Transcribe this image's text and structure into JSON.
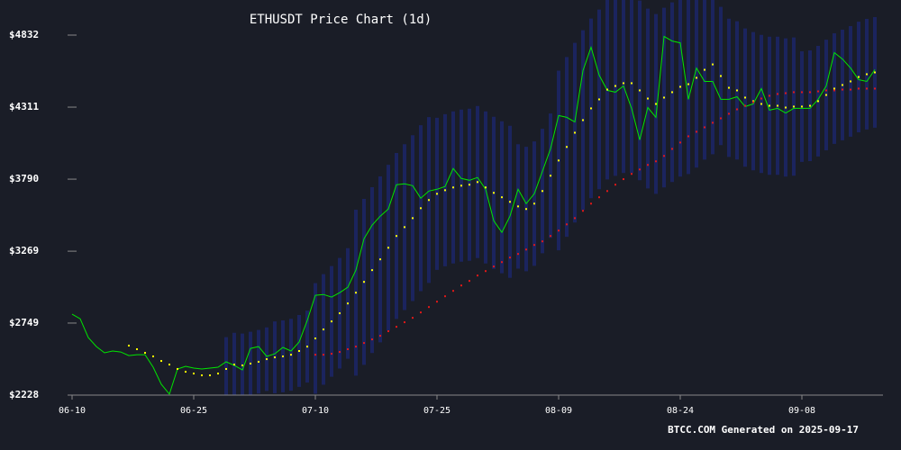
{
  "chart_data": {
    "type": "line",
    "title": "ETHUSDT Price Chart (1d)",
    "footer": "BTCC.COM Generated on 2025-09-17",
    "categories": [
      "06-10",
      "06-11",
      "06-12",
      "06-13",
      "06-14",
      "06-15",
      "06-16",
      "06-17",
      "06-18",
      "06-19",
      "06-20",
      "06-21",
      "06-22",
      "06-23",
      "06-24",
      "06-25",
      "06-26",
      "06-27",
      "06-28",
      "06-29",
      "06-30",
      "07-01",
      "07-02",
      "07-03",
      "07-04",
      "07-05",
      "07-06",
      "07-07",
      "07-08",
      "07-09",
      "07-10",
      "07-11",
      "07-12",
      "07-13",
      "07-14",
      "07-15",
      "07-16",
      "07-17",
      "07-18",
      "07-19",
      "07-20",
      "07-21",
      "07-22",
      "07-23",
      "07-24",
      "07-25",
      "07-26",
      "07-27",
      "07-28",
      "07-29",
      "07-30",
      "07-31",
      "08-01",
      "08-02",
      "08-03",
      "08-04",
      "08-05",
      "08-06",
      "08-07",
      "08-08",
      "08-09",
      "08-10",
      "08-11",
      "08-12",
      "08-13",
      "08-14",
      "08-15",
      "08-16",
      "08-17",
      "08-18",
      "08-19",
      "08-20",
      "08-21",
      "08-22",
      "08-23",
      "08-24",
      "08-25",
      "08-26",
      "08-27",
      "08-28",
      "08-29",
      "08-30",
      "08-31",
      "09-01",
      "09-02",
      "09-03",
      "09-04",
      "09-05",
      "09-06",
      "09-07",
      "09-08",
      "09-09",
      "09-10",
      "09-11",
      "09-12",
      "09-13",
      "09-14",
      "09-15",
      "09-16",
      "09-17"
    ],
    "xticks": [
      "06-10",
      "06-25",
      "07-10",
      "07-25",
      "08-09",
      "08-24",
      "09-08"
    ],
    "ylim": [
      2228,
      4832
    ],
    "yticks": [
      {
        "value": 2228,
        "label": "$2228"
      },
      {
        "value": 2749,
        "label": "$2749"
      },
      {
        "value": 3269,
        "label": "$3269"
      },
      {
        "value": 3790,
        "label": "$3790"
      },
      {
        "value": 4311,
        "label": "$4311"
      },
      {
        "value": 4832,
        "label": "$4832"
      }
    ],
    "band": {
      "color": "#1c2a8c",
      "upper": [
        null,
        null,
        null,
        null,
        null,
        null,
        null,
        null,
        null,
        null,
        null,
        null,
        null,
        null,
        null,
        null,
        null,
        null,
        null,
        2647,
        2679,
        2673,
        2686,
        2699,
        2718,
        2761,
        2768,
        2780,
        2807,
        2839,
        3038,
        3103,
        3161,
        3220,
        3291,
        3569,
        3647,
        3732,
        3810,
        3894,
        3979,
        4043,
        4108,
        4180,
        4239,
        4234,
        4260,
        4280,
        4293,
        4300,
        4319,
        4280,
        4241,
        4209,
        4176,
        4043,
        4024,
        4063,
        4154,
        4265,
        4575,
        4673,
        4776,
        4867,
        4952,
        5017,
        5088,
        5114,
        5134,
        5134,
        5082,
        5023,
        4984,
        5030,
        5069,
        5108,
        5127,
        5173,
        5231,
        5270,
        5036,
        4951,
        4932,
        4880,
        4854,
        4834,
        4821,
        4821,
        4808,
        4815,
        4715,
        4721,
        4754,
        4799,
        4845,
        4871,
        4897,
        4929,
        4949,
        4962
      ],
      "lower": [
        null,
        null,
        null,
        null,
        null,
        null,
        null,
        null,
        null,
        null,
        null,
        null,
        null,
        null,
        null,
        null,
        null,
        null,
        null,
        2187,
        2219,
        2213,
        2226,
        2239,
        2258,
        2241,
        2248,
        2260,
        2287,
        2319,
        2238,
        2303,
        2361,
        2420,
        2491,
        2369,
        2447,
        2532,
        2610,
        2694,
        2779,
        2843,
        2908,
        2980,
        3039,
        3134,
        3160,
        3180,
        3193,
        3200,
        3219,
        3180,
        3141,
        3109,
        3076,
        3143,
        3124,
        3163,
        3254,
        3365,
        3275,
        3373,
        3476,
        3567,
        3652,
        3717,
        3788,
        3814,
        3834,
        3834,
        3782,
        3723,
        3684,
        3730,
        3769,
        3808,
        3827,
        3873,
        3931,
        3970,
        4036,
        3951,
        3932,
        3880,
        3854,
        3834,
        3821,
        3821,
        3808,
        3815,
        3915,
        3921,
        3954,
        3999,
        4045,
        4071,
        4097,
        4129,
        4149,
        4162
      ]
    },
    "series": [
      {
        "color": "#00e600",
        "style": "line",
        "values": [
          2813,
          2780,
          2644,
          2579,
          2534,
          2547,
          2540,
          2514,
          2520,
          2520,
          2430,
          2306,
          2235,
          2417,
          2436,
          2423,
          2417,
          2423,
          2430,
          2469,
          2443,
          2410,
          2566,
          2579,
          2508,
          2527,
          2573,
          2547,
          2612,
          2768,
          2950,
          2956,
          2937,
          2969,
          3008,
          3132,
          3359,
          3457,
          3522,
          3574,
          3750,
          3756,
          3743,
          3652,
          3704,
          3717,
          3737,
          3867,
          3795,
          3782,
          3802,
          3717,
          3489,
          3405,
          3522,
          3717,
          3613,
          3684,
          3847,
          4009,
          4250,
          4237,
          4204,
          4575,
          4744,
          4542,
          4432,
          4419,
          4464,
          4302,
          4074,
          4308,
          4237,
          4822,
          4789,
          4776,
          4367,
          4594,
          4497,
          4497,
          4367,
          4367,
          4386,
          4315,
          4334,
          4445,
          4289,
          4302,
          4269,
          4302,
          4302,
          4302,
          4367,
          4464,
          4705,
          4659,
          4594,
          4510,
          4497,
          4582
        ]
      },
      {
        "color": "#ffff00",
        "style": "dots",
        "values": [
          null,
          null,
          null,
          null,
          null,
          null,
          null,
          2586,
          2560,
          2534,
          2508,
          2475,
          2449,
          2417,
          2397,
          2384,
          2371,
          2371,
          2384,
          2417,
          2449,
          2443,
          2456,
          2469,
          2488,
          2501,
          2508,
          2520,
          2547,
          2579,
          2638,
          2703,
          2761,
          2820,
          2891,
          2969,
          3047,
          3132,
          3210,
          3294,
          3379,
          3443,
          3508,
          3580,
          3639,
          3684,
          3710,
          3730,
          3743,
          3750,
          3769,
          3730,
          3691,
          3659,
          3626,
          3593,
          3574,
          3613,
          3704,
          3815,
          3925,
          4023,
          4126,
          4217,
          4302,
          4367,
          4438,
          4464,
          4484,
          4484,
          4432,
          4373,
          4334,
          4380,
          4419,
          4458,
          4477,
          4523,
          4581,
          4620,
          4536,
          4451,
          4432,
          4380,
          4354,
          4334,
          4321,
          4321,
          4308,
          4315,
          4315,
          4321,
          4354,
          4399,
          4445,
          4471,
          4497,
          4529,
          4549,
          4562
        ]
      },
      {
        "color": "#e01818",
        "style": "dots",
        "values": [
          null,
          null,
          null,
          null,
          null,
          null,
          null,
          null,
          null,
          null,
          null,
          null,
          null,
          null,
          null,
          null,
          null,
          null,
          null,
          null,
          null,
          null,
          null,
          null,
          null,
          null,
          null,
          null,
          null,
          null,
          2520,
          2520,
          2527,
          2540,
          2560,
          2579,
          2605,
          2631,
          2657,
          2690,
          2722,
          2755,
          2787,
          2826,
          2865,
          2904,
          2943,
          2982,
          3021,
          3054,
          3093,
          3125,
          3158,
          3190,
          3223,
          3249,
          3281,
          3314,
          3340,
          3379,
          3418,
          3463,
          3508,
          3561,
          3613,
          3659,
          3704,
          3750,
          3790,
          3828,
          3860,
          3893,
          3919,
          3958,
          4009,
          4055,
          4100,
          4133,
          4165,
          4198,
          4230,
          4263,
          4295,
          4321,
          4347,
          4373,
          4393,
          4406,
          4412,
          4419,
          4419,
          4419,
          4425,
          4432,
          4432,
          4438,
          4438,
          4445,
          4445,
          4445
        ]
      }
    ]
  }
}
